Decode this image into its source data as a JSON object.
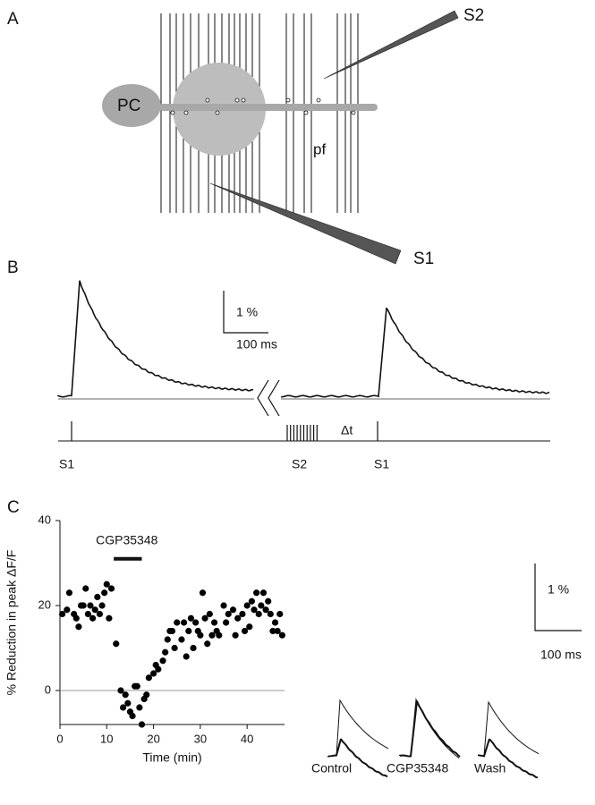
{
  "panels": {
    "a": "A",
    "b": "B",
    "c": "C"
  },
  "diagram": {
    "cell": "PC",
    "fiber": "pf",
    "stim1": "S1",
    "stim2": "S2"
  },
  "traces": {
    "scale_y": "1 %",
    "scale_x": "100 ms",
    "delay": "Δt",
    "stim_labels": [
      "S1",
      "S2",
      "S1"
    ],
    "conditions": [
      "Control",
      "CGP35348",
      "Wash"
    ]
  },
  "chart_data": {
    "type": "scatter",
    "x_label": "Time (min)",
    "y_label": "% Reduction in peak ΔF/F",
    "xlim": [
      0,
      48
    ],
    "ylim": [
      -8,
      40
    ],
    "xticks": [
      0,
      10,
      20,
      30,
      40
    ],
    "yticks": [
      0,
      20,
      40
    ],
    "reference_line": 0,
    "color": "#000000",
    "annotations": [
      {
        "text": "CGP35348",
        "x": [
          11.5,
          17.5
        ],
        "y": 31
      }
    ],
    "x": [
      0.5,
      1.5,
      2,
      3,
      3.5,
      4,
      4.5,
      5,
      5.5,
      6,
      6.5,
      7,
      7.5,
      8,
      8.5,
      9,
      9.5,
      10,
      10.5,
      11,
      12,
      13,
      13.5,
      14,
      14.5,
      15,
      15.5,
      16,
      16.5,
      17,
      17.5,
      18,
      18.5,
      19,
      20,
      20.5,
      21,
      22,
      22.5,
      23,
      23.5,
      24,
      24.5,
      25,
      26,
      26.5,
      27,
      27.5,
      28,
      28.5,
      29,
      29.5,
      30,
      30.5,
      31,
      31.5,
      32,
      32.5,
      33,
      33.5,
      34,
      35,
      35.5,
      36,
      37,
      37.5,
      38,
      39,
      39.5,
      40,
      40.5,
      41,
      41.5,
      42,
      42.5,
      43,
      43.5,
      44,
      44.5,
      45,
      45.5,
      46,
      46.5,
      47,
      47.5
    ],
    "values": [
      18,
      19,
      23,
      18,
      17,
      15,
      20,
      20,
      24,
      18,
      20,
      17,
      19,
      22,
      18,
      20,
      23,
      25,
      17,
      24,
      11,
      0,
      -4,
      -1,
      -3,
      -5,
      -6,
      1,
      1,
      -4,
      -8,
      -2,
      -1,
      3,
      4,
      6,
      5,
      7,
      9,
      12,
      14,
      14,
      10,
      16,
      12,
      16,
      8,
      14,
      17,
      10,
      16,
      14,
      13,
      23,
      17,
      11,
      18,
      13,
      16,
      14,
      13,
      20,
      16,
      18,
      19,
      13,
      17,
      18,
      14,
      20,
      15,
      21,
      19,
      23,
      18,
      20,
      23,
      19,
      21,
      18,
      14,
      16,
      14,
      18,
      13
    ]
  }
}
